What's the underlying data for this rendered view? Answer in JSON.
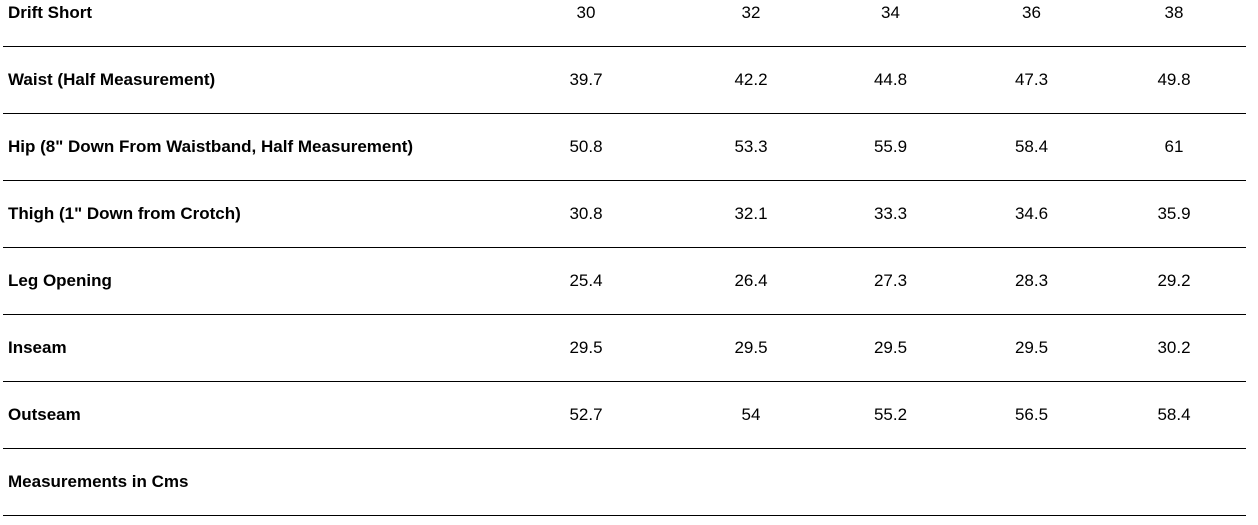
{
  "table": {
    "header": [
      "Drift Short",
      30,
      32,
      34,
      36,
      38
    ],
    "rows": [
      [
        "Waist (Half Measurement)",
        39.7,
        42.2,
        44.8,
        47.3,
        49.8
      ],
      [
        "Hip (8\" Down From Waistband, Half Measurement)",
        50.8,
        53.3,
        55.9,
        58.4,
        61
      ],
      [
        "Thigh (1\" Down from Crotch)",
        30.8,
        32.1,
        33.3,
        34.6,
        35.9
      ],
      [
        "Leg Opening",
        25.4,
        26.4,
        27.3,
        28.3,
        29.2
      ],
      [
        "Inseam",
        29.5,
        29.5,
        29.5,
        29.5,
        30.2
      ],
      [
        "Outseam",
        52.7,
        54,
        55.2,
        56.5,
        58.4
      ]
    ],
    "footer": "Measurements in Cms"
  }
}
